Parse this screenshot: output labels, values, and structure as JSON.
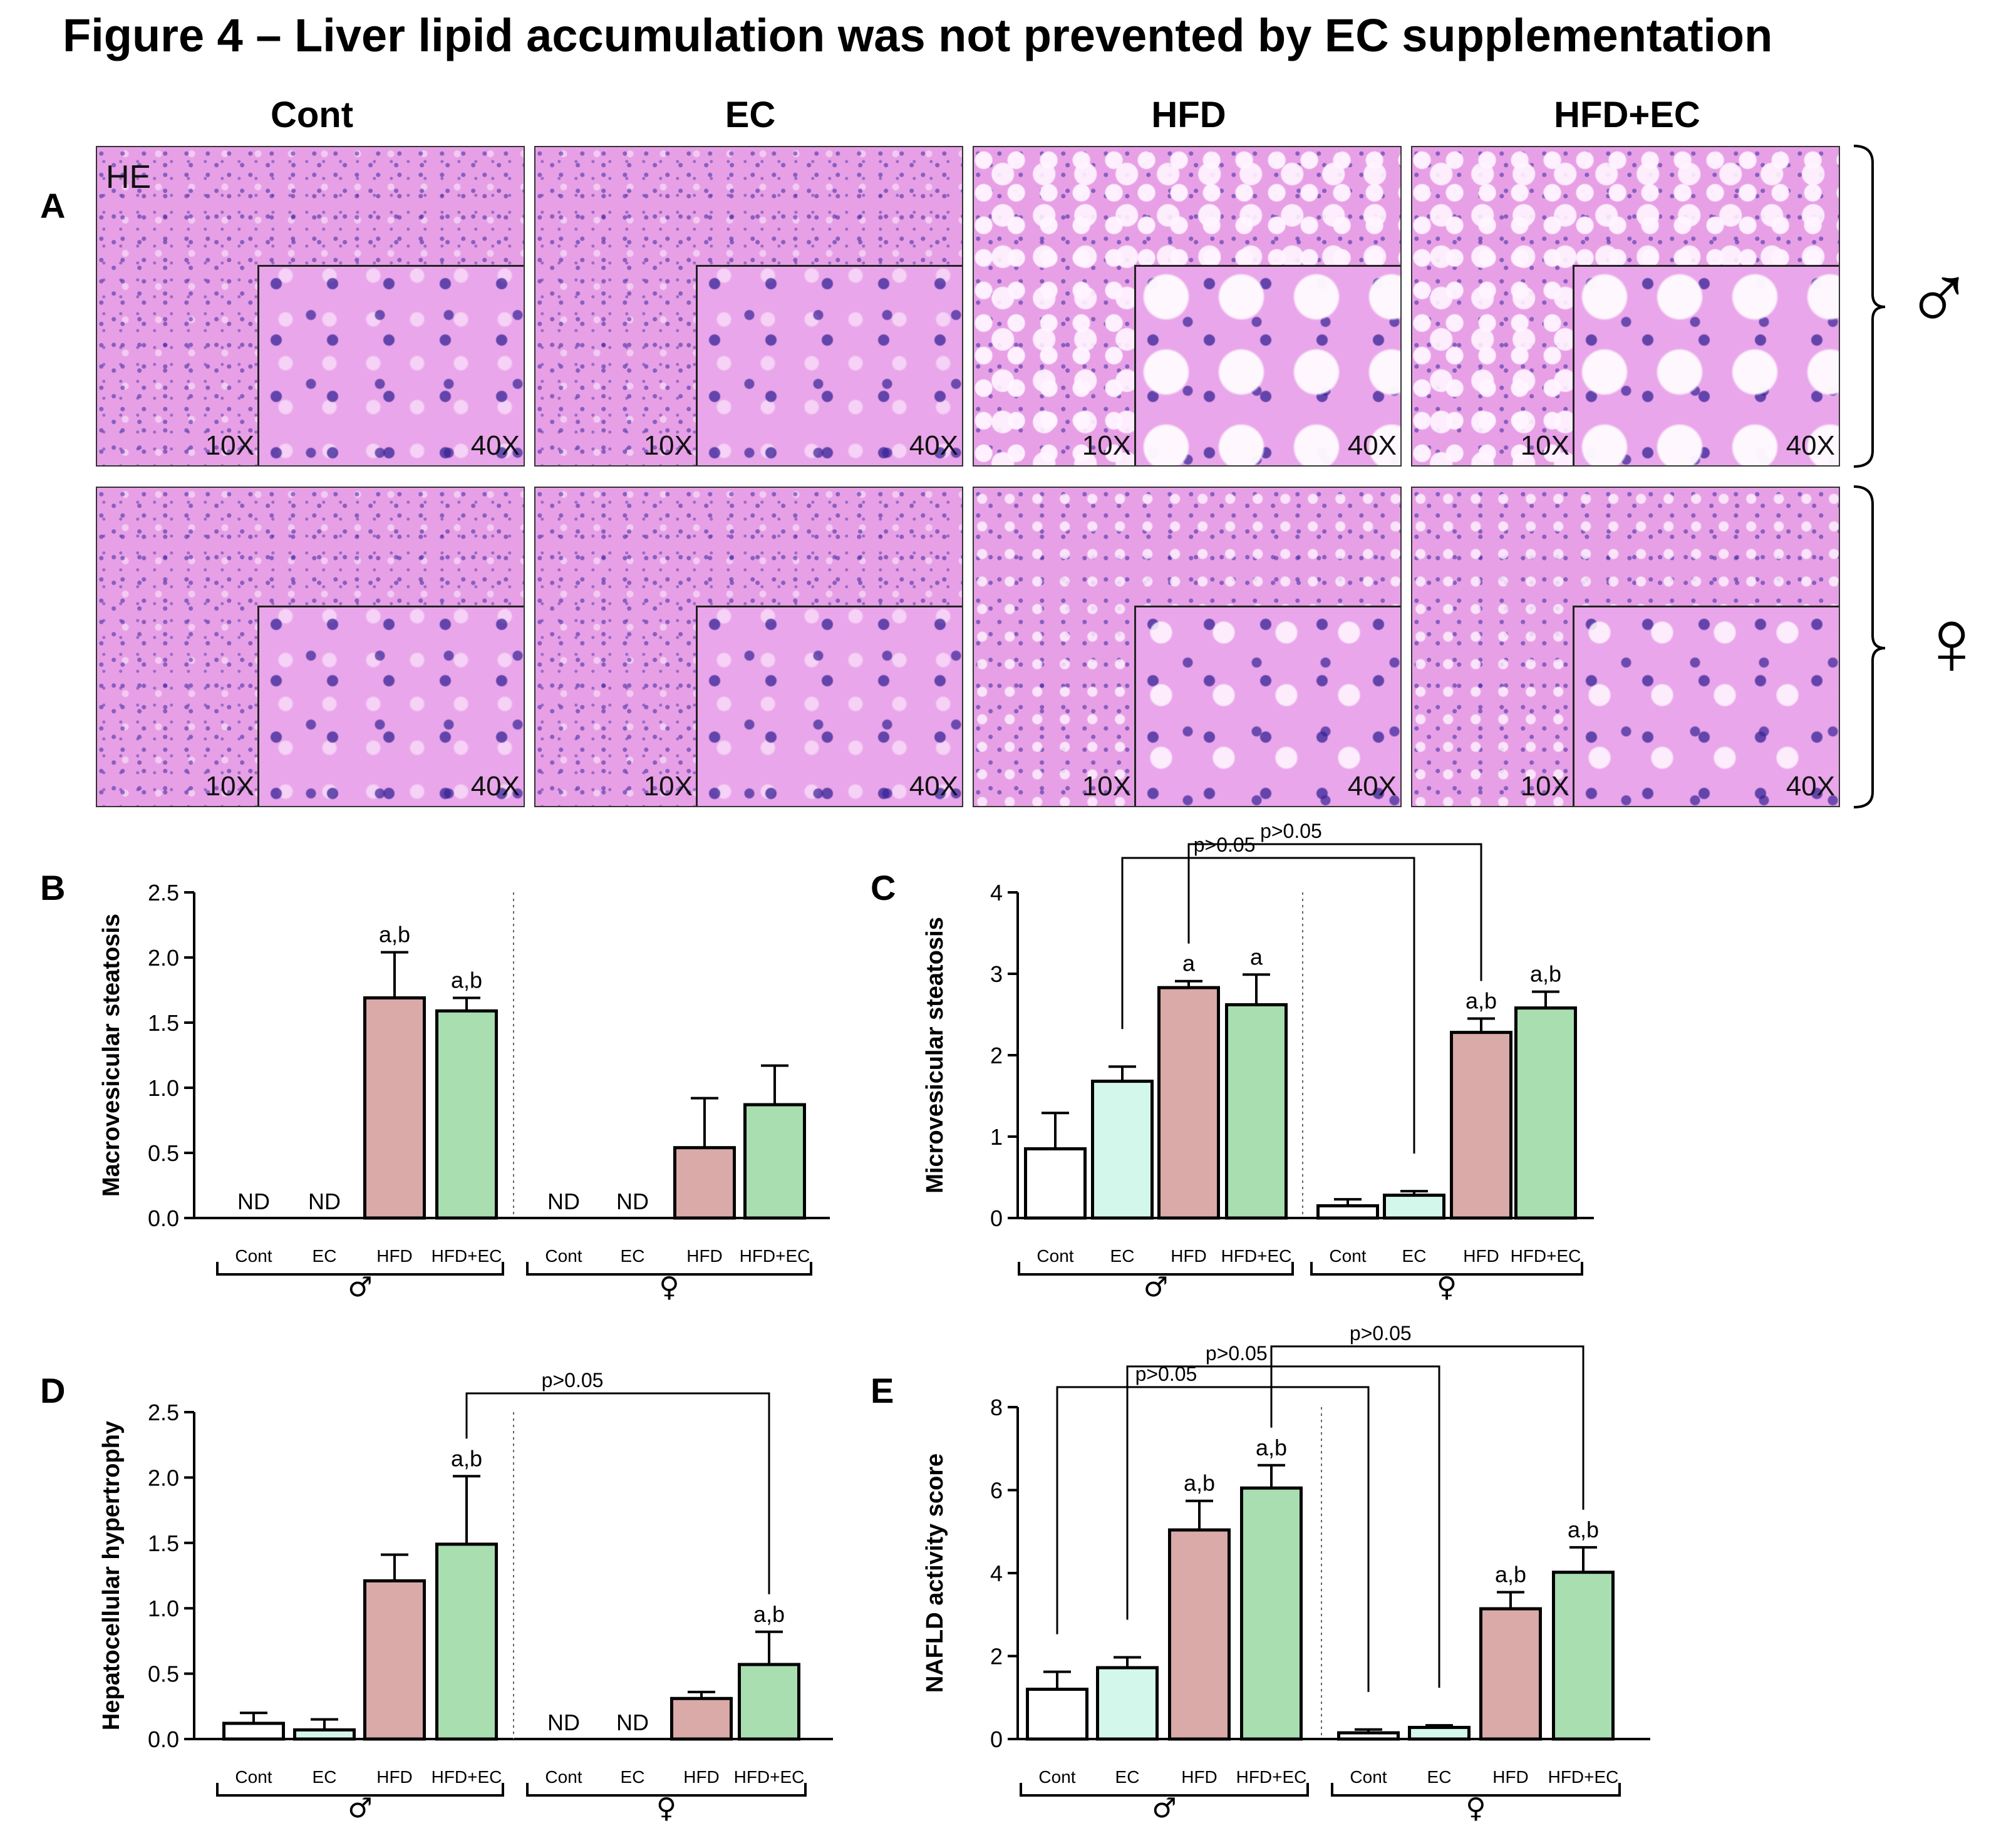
{
  "figure": {
    "title": "Figure 4 – Liver lipid accumulation was not prevented by EC supplementation",
    "panel_letters": [
      "A",
      "B",
      "C",
      "D",
      "E"
    ]
  },
  "histology": {
    "columns": [
      "Cont",
      "EC",
      "HFD",
      "HFD+EC"
    ],
    "stain_label": "HE",
    "mag_low": "10X",
    "mag_high": "40X",
    "male_symbol": "♂",
    "female_symbol": "♀"
  },
  "chart_data": [
    {
      "panel": "B",
      "type": "bar",
      "ylabel": "Macrovesicular steatosis",
      "ylim": [
        0,
        2.5
      ],
      "yticks": [
        "0.0",
        "0.5",
        "1.0",
        "1.5",
        "2.0",
        "2.5"
      ],
      "categories": [
        "Cont",
        "EC",
        "HFD",
        "HFD+EC",
        "Cont",
        "EC",
        "HFD",
        "HFD+EC"
      ],
      "groups": [
        "♂",
        "♀"
      ],
      "values": [
        0,
        0,
        1.69,
        1.59,
        0,
        0,
        0.54,
        0.87
      ],
      "errors": [
        0,
        0,
        0.35,
        0.1,
        0,
        0,
        0.38,
        0.3
      ],
      "labels": [
        "ND",
        "ND",
        "a,b",
        "a,b",
        "ND",
        "ND",
        "",
        ""
      ],
      "brackets": []
    },
    {
      "panel": "C",
      "type": "bar",
      "ylabel": "Microvesicular steatosis",
      "ylim": [
        0,
        4
      ],
      "yticks": [
        "0",
        "1",
        "2",
        "3",
        "4"
      ],
      "categories": [
        "Cont",
        "EC",
        "HFD",
        "HFD+EC",
        "Cont",
        "EC",
        "HFD",
        "HFD+EC"
      ],
      "groups": [
        "♂",
        "♀"
      ],
      "values": [
        0.85,
        1.68,
        2.83,
        2.62,
        0.15,
        0.28,
        2.28,
        2.58
      ],
      "errors": [
        0.44,
        0.18,
        0.08,
        0.37,
        0.08,
        0.05,
        0.17,
        0.2
      ],
      "labels": [
        "",
        "",
        "a",
        "a",
        "",
        "",
        "a,b",
        "a,b"
      ],
      "brackets": [
        {
          "from": 1,
          "to": 5,
          "label": "p>0.05"
        },
        {
          "from": 2,
          "to": 6,
          "label": "p>0.05"
        }
      ]
    },
    {
      "panel": "D",
      "type": "bar",
      "ylabel": "Hepatocellular hypertrophy",
      "ylim": [
        0,
        2.5
      ],
      "yticks": [
        "0.0",
        "0.5",
        "1.0",
        "1.5",
        "2.0",
        "2.5"
      ],
      "categories": [
        "Cont",
        "EC",
        "HFD",
        "HFD+EC",
        "Cont",
        "EC",
        "HFD",
        "HFD+EC"
      ],
      "groups": [
        "♂",
        "♀"
      ],
      "values": [
        0.12,
        0.07,
        1.21,
        1.49,
        0,
        0,
        0.31,
        0.57
      ],
      "errors": [
        0.08,
        0.08,
        0.2,
        0.52,
        0,
        0,
        0.05,
        0.25
      ],
      "labels": [
        "",
        "",
        "",
        "a,b",
        "ND",
        "ND",
        "",
        "a,b"
      ],
      "brackets": [
        {
          "from": 3,
          "to": 7,
          "label": "p>0.05"
        }
      ]
    },
    {
      "panel": "E",
      "type": "bar",
      "ylabel": "NAFLD activity score",
      "ylim": [
        0,
        8
      ],
      "yticks": [
        "0",
        "2",
        "4",
        "6",
        "8"
      ],
      "categories": [
        "Cont",
        "EC",
        "HFD",
        "HFD+EC",
        "Cont",
        "EC",
        "HFD",
        "HFD+EC"
      ],
      "groups": [
        "♂",
        "♀"
      ],
      "values": [
        1.2,
        1.72,
        5.04,
        6.05,
        0.15,
        0.28,
        3.14,
        4.02
      ],
      "errors": [
        0.42,
        0.25,
        0.7,
        0.55,
        0.08,
        0.05,
        0.4,
        0.6
      ],
      "labels": [
        "",
        "",
        "a,b",
        "a,b",
        "",
        "",
        "a,b",
        "a,b"
      ],
      "brackets": [
        {
          "from": 0,
          "to": 4,
          "label": "p>0.05"
        },
        {
          "from": 1,
          "to": 5,
          "label": "p>0.05"
        },
        {
          "from": 3,
          "to": 7,
          "label": "p>0.05"
        }
      ]
    }
  ],
  "colors": {
    "Cont": "#ffffff",
    "EC": "#d4f7ec",
    "HFD": "#d9aaa8",
    "HFD+EC": "#a8deb0"
  }
}
